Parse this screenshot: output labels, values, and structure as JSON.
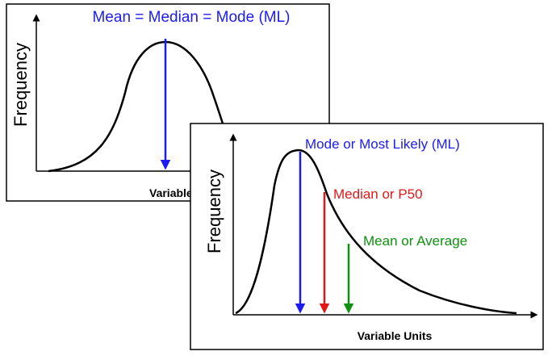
{
  "panel_symmetric": {
    "ylabel": "Frequency",
    "xlabel": "Variable Units",
    "annotation": "Mean = Median = Mode (ML)",
    "curve": "symmetric",
    "colors": {
      "arrow": "#1c1cf0",
      "label": "#1c1cf0"
    }
  },
  "panel_skewed": {
    "ylabel": "Frequency",
    "xlabel": "Variable Units",
    "curve": "right-skewed",
    "markers": [
      {
        "label": "Mode or Most Likely (ML)",
        "color": "#1c1cf0"
      },
      {
        "label": "Median or P50",
        "color": "#e01818"
      },
      {
        "label": "Mean or Average",
        "color": "#109010"
      }
    ]
  }
}
